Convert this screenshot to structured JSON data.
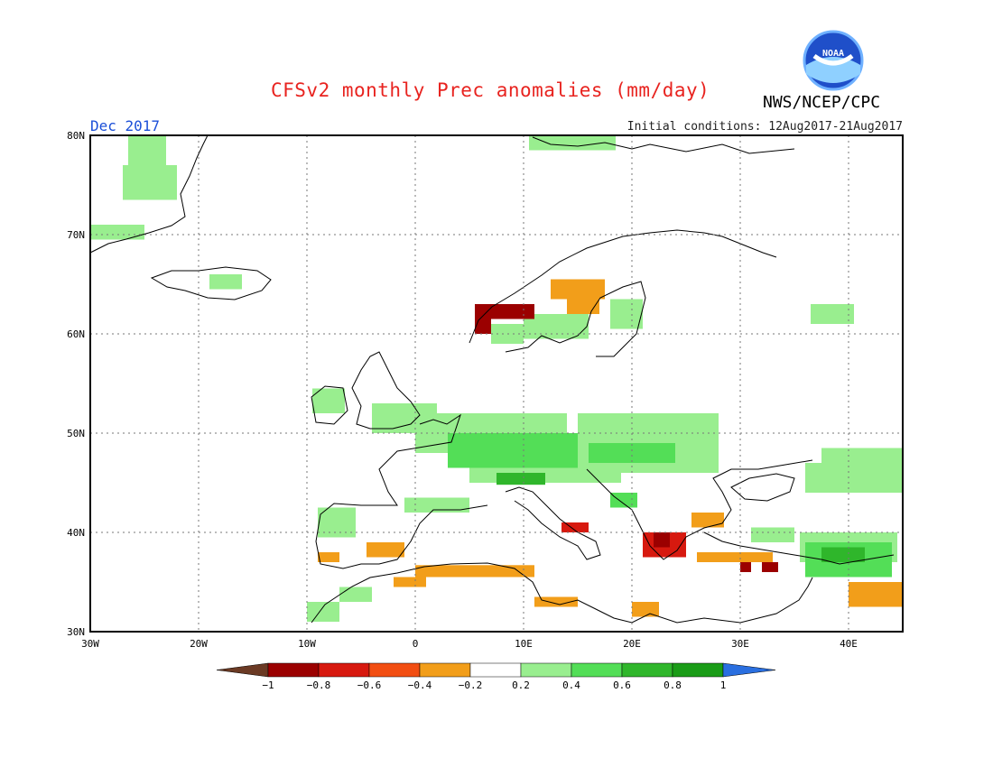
{
  "header": {
    "title": "CFSv2 monthly Prec anomalies (mm/day)",
    "agency": "NWS/NCEP/CPC",
    "logo_text": "NOAA",
    "period": "Dec 2017",
    "initial_conditions": "Initial conditions: 12Aug2017-21Aug2017"
  },
  "map": {
    "lon_labels": [
      "30W",
      "20W",
      "10W",
      "0",
      "10E",
      "20E",
      "30E",
      "40E"
    ],
    "lat_labels": [
      "80N",
      "70N",
      "60N",
      "50N",
      "40N",
      "30N"
    ],
    "lon_range": [
      -30,
      45
    ],
    "lat_range": [
      30,
      80
    ]
  },
  "colorbar": {
    "tick_labels": [
      "-1",
      "-0.8",
      "-0.6",
      "-0.4",
      "-0.2",
      "0.2",
      "0.4",
      "0.6",
      "0.8",
      "1"
    ],
    "colors": {
      "below": "#6b3a24",
      "bins": [
        "#9b0000",
        "#d7190f",
        "#f24e12",
        "#f29e1a",
        "#ffffff",
        "#99ee8f",
        "#53de57",
        "#2fb62b",
        "#1a9c17"
      ],
      "above": "#2a6fe0"
    }
  },
  "anomaly_regions": [
    {
      "level": "pos-weak",
      "lon": -26.5,
      "lat": 77,
      "w": 3.5,
      "h": 3
    },
    {
      "level": "pos-weak",
      "lon": -27,
      "lat": 73.5,
      "w": 5,
      "h": 3.5
    },
    {
      "level": "pos-weak",
      "lon": -30,
      "lat": 69.5,
      "w": 5,
      "h": 1.5
    },
    {
      "level": "pos-weak",
      "lon": -19,
      "lat": 64.5,
      "w": 3,
      "h": 1.5
    },
    {
      "level": "pos-weak",
      "lon": 10.5,
      "lat": 78.5,
      "w": 8,
      "h": 1.5
    },
    {
      "level": "pos-weak",
      "lon": 36.5,
      "lat": 61,
      "w": 4,
      "h": 2
    },
    {
      "level": "pos-weak",
      "lon": -9.5,
      "lat": 52,
      "w": 3,
      "h": 2.5
    },
    {
      "level": "pos-weak",
      "lon": -4,
      "lat": 50,
      "w": 6,
      "h": 3
    },
    {
      "level": "pos-weak",
      "lon": 0,
      "lat": 48,
      "w": 14,
      "h": 4
    },
    {
      "level": "pos-weak",
      "lon": 5,
      "lat": 45,
      "w": 14,
      "h": 5
    },
    {
      "level": "pos-weak",
      "lon": 15,
      "lat": 46,
      "w": 13,
      "h": 6
    },
    {
      "level": "pos-weak",
      "lon": 10,
      "lat": 59.5,
      "w": 6,
      "h": 2.5
    },
    {
      "level": "pos-weak",
      "lon": 18,
      "lat": 60.5,
      "w": 3,
      "h": 3
    },
    {
      "level": "pos-weak",
      "lon": 7,
      "lat": 59,
      "w": 3,
      "h": 2
    },
    {
      "level": "pos-weak",
      "lon": 37.5,
      "lat": 46.5,
      "w": 7.5,
      "h": 2
    },
    {
      "level": "pos-weak",
      "lon": 36,
      "lat": 44,
      "w": 9,
      "h": 3
    },
    {
      "level": "pos-weak",
      "lon": 31,
      "lat": 39,
      "w": 4,
      "h": 1.5
    },
    {
      "level": "pos-weak",
      "lon": 35.5,
      "lat": 37,
      "w": 9,
      "h": 3
    },
    {
      "level": "pos-weak",
      "lon": -9,
      "lat": 39.5,
      "w": 3.5,
      "h": 3
    },
    {
      "level": "pos-weak",
      "lon": -10,
      "lat": 31,
      "w": 3,
      "h": 2
    },
    {
      "level": "pos-weak",
      "lon": -7,
      "lat": 33,
      "w": 3,
      "h": 1.5
    },
    {
      "level": "pos-weak",
      "lon": -1,
      "lat": 42,
      "w": 6,
      "h": 1.5
    },
    {
      "level": "pos-mid",
      "lon": 3,
      "lat": 46.5,
      "w": 12,
      "h": 3.5
    },
    {
      "level": "pos-mid",
      "lon": 16,
      "lat": 47,
      "w": 8,
      "h": 2
    },
    {
      "level": "pos-mid",
      "lon": 18,
      "lat": 42.5,
      "w": 2.5,
      "h": 1.5
    },
    {
      "level": "pos-mid",
      "lon": 36,
      "lat": 35.5,
      "w": 8,
      "h": 3.5
    },
    {
      "level": "pos-strong",
      "lon": 7.5,
      "lat": 44.8,
      "w": 4.5,
      "h": 1.2
    },
    {
      "level": "pos-strong",
      "lon": 37.5,
      "lat": 37,
      "w": 4,
      "h": 1.5
    },
    {
      "level": "neg-mid",
      "lon": 14,
      "lat": 63.5,
      "w": 3,
      "h": 2
    },
    {
      "level": "neg-mid",
      "lon": 13.5,
      "lat": 40,
      "w": 2.5,
      "h": 1
    },
    {
      "level": "neg-mid",
      "lon": 21,
      "lat": 37.5,
      "w": 4,
      "h": 2.5
    },
    {
      "level": "neg-strong",
      "lon": 5.5,
      "lat": 60,
      "w": 1.5,
      "h": 3
    },
    {
      "level": "neg-strong",
      "lon": 7,
      "lat": 61.5,
      "w": 4,
      "h": 1.5
    },
    {
      "level": "neg-strong",
      "lon": 13,
      "lat": 64,
      "w": 2,
      "h": 1.5
    },
    {
      "level": "neg-strong",
      "lon": 22,
      "lat": 38.5,
      "w": 1.5,
      "h": 1.5
    },
    {
      "level": "neg-strong",
      "lon": 30,
      "lat": 36,
      "w": 1,
      "h": 1
    },
    {
      "level": "neg-strong",
      "lon": 32,
      "lat": 36,
      "w": 1.5,
      "h": 1
    },
    {
      "level": "neg-weak",
      "lon": 12.5,
      "lat": 63.5,
      "w": 5,
      "h": 2
    },
    {
      "level": "neg-weak",
      "lon": 14,
      "lat": 62,
      "w": 3,
      "h": 2
    },
    {
      "level": "neg-weak",
      "lon": -4.5,
      "lat": 37.5,
      "w": 3.5,
      "h": 1.5
    },
    {
      "level": "neg-weak",
      "lon": 0,
      "lat": 35.5,
      "w": 11,
      "h": 1.2
    },
    {
      "level": "neg-weak",
      "lon": -2,
      "lat": 34.5,
      "w": 3,
      "h": 1
    },
    {
      "level": "neg-weak",
      "lon": 11,
      "lat": 32.5,
      "w": 4,
      "h": 1
    },
    {
      "level": "neg-weak",
      "lon": 20,
      "lat": 31.5,
      "w": 2.5,
      "h": 1.5
    },
    {
      "level": "neg-weak",
      "lon": 26,
      "lat": 37,
      "w": 7,
      "h": 1
    },
    {
      "level": "neg-weak",
      "lon": 25.5,
      "lat": 40.5,
      "w": 3,
      "h": 1.5
    },
    {
      "level": "neg-weak",
      "lon": 40,
      "lat": 32.5,
      "w": 5,
      "h": 2.5
    },
    {
      "level": "neg-weak",
      "lon": -9,
      "lat": 37,
      "w": 2,
      "h": 1
    }
  ]
}
